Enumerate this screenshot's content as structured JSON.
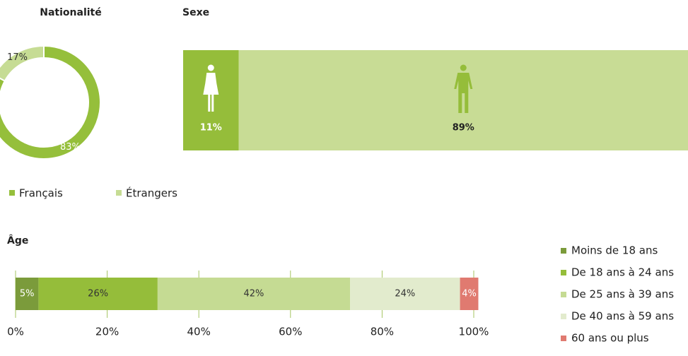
{
  "chart_data": [
    {
      "type": "pie",
      "title": "Nationalité",
      "categories": [
        "Français",
        "Étrangers"
      ],
      "values": [
        83,
        17
      ],
      "value_labels": [
        "83%",
        "17%"
      ],
      "colors": [
        "#95bf3b",
        "#c6dc94"
      ],
      "legend": "bottom"
    },
    {
      "type": "proportion",
      "title": "Sexe",
      "categories": [
        null,
        null
      ],
      "values": [
        11,
        89
      ],
      "value_labels": [
        "11%",
        "89%"
      ],
      "colors": [
        "#95bd3a",
        "#c8dc95"
      ]
    },
    {
      "type": "stacked-bar",
      "title": "Âge",
      "categories": [
        null
      ],
      "series": [
        {
          "name": "Moins de 18 ans",
          "color": "#7b9b3b",
          "values": [
            5
          ],
          "value_labels": [
            "5%"
          ]
        },
        {
          "name": "De 18 ans à 24 ans",
          "color": "#95bd3a",
          "values": [
            26
          ],
          "value_labels": [
            "26%"
          ]
        },
        {
          "name": "De 25 ans à 39 ans",
          "color": "#c5db93",
          "values": [
            42
          ],
          "value_labels": [
            "42%"
          ]
        },
        {
          "name": "De 40 ans à 59 ans",
          "color": "#e2ebcd",
          "values": [
            24
          ],
          "value_labels": [
            "24%"
          ]
        },
        {
          "name": "60 ans ou plus",
          "color": "#e07a70",
          "values": [
            4
          ],
          "value_labels": [
            "4%"
          ]
        }
      ],
      "xlim": [
        0,
        100
      ],
      "xticks": [
        {
          "value": 0,
          "label": "0%"
        },
        {
          "value": 20,
          "label": "20%"
        },
        {
          "value": 40,
          "label": "40%"
        },
        {
          "value": 60,
          "label": "60%"
        },
        {
          "value": 80,
          "label": "80%"
        },
        {
          "value": 100,
          "label": "100%"
        }
      ],
      "grid": true,
      "legend": "right"
    }
  ]
}
